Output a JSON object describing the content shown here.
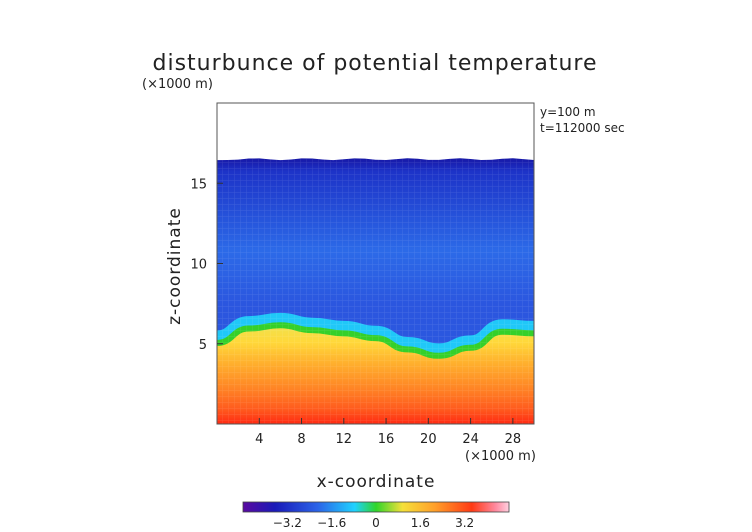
{
  "chart_data": {
    "type": "heatmap",
    "title": "disturbunce of potential temperature",
    "unit_label": "(×1000 m)",
    "annotation_y": "y=100 m",
    "annotation_t": "t=112000 sec",
    "xlabel": "x-coordinate",
    "ylabel": "z-coordinate",
    "x_unit": "(×1000 m)",
    "xlim": [
      0,
      30
    ],
    "ylim": [
      0,
      20
    ],
    "x_ticks": [
      4,
      8,
      12,
      16,
      20,
      24,
      28
    ],
    "y_ticks": [
      5,
      10,
      15
    ],
    "field_top_z": 16.5,
    "transition_z": {
      "x": [
        0,
        3,
        6,
        9,
        12,
        15,
        18,
        21,
        24,
        27,
        30
      ],
      "z": [
        4.9,
        5.8,
        6.0,
        5.7,
        5.5,
        5.2,
        4.5,
        4.1,
        4.6,
        5.6,
        5.5
      ]
    },
    "colorbar": {
      "ticks": [
        -3.2,
        -1.6,
        0,
        1.6,
        3.2
      ],
      "tick_labels": [
        "−3.2",
        "−1.6",
        "0",
        "1.6",
        "3.2"
      ],
      "range": [
        -4.8,
        4.8
      ]
    },
    "colors": {
      "deep_blue": "#1a1ab8",
      "mid_blue": "#2b63e8",
      "cyan": "#1fd2ff",
      "green": "#2fd52a",
      "yellow": "#f5d43a",
      "orange": "#ff9a2a",
      "red_orange": "#ff5a1e",
      "red": "#ff2a12"
    }
  }
}
